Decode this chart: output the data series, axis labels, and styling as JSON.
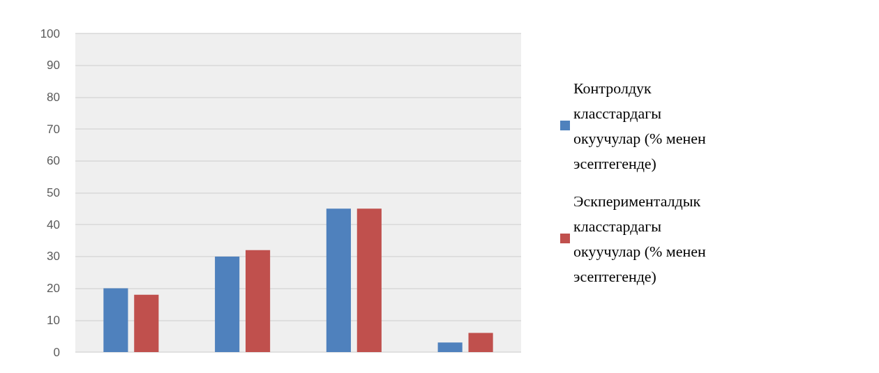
{
  "chart_data": {
    "type": "bar",
    "categories": [
      null,
      null,
      null,
      null
    ],
    "series": [
      {
        "name": "Контролдук класстардагы окуучулар (% менен эсептегенде)",
        "color": "#4f81bd",
        "values": [
          20,
          30,
          45,
          3
        ]
      },
      {
        "name": "Эскперименталдык класстардагы окуучулар (% менен эсептегенде)",
        "color": "#c0504d",
        "values": [
          18,
          32,
          45,
          6
        ]
      }
    ],
    "ylim": [
      0,
      100
    ],
    "yticks": [
      0,
      10,
      20,
      30,
      40,
      50,
      60,
      70,
      80,
      90,
      100
    ],
    "grid": "y",
    "legend": "right"
  }
}
